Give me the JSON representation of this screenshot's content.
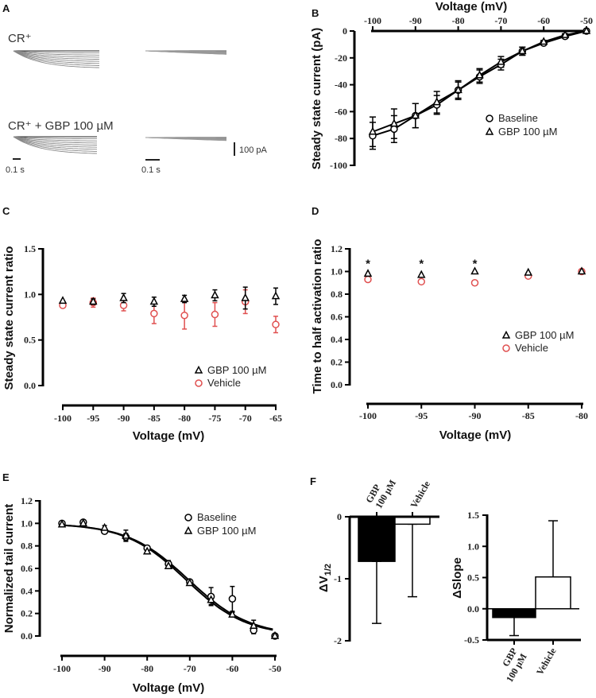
{
  "figure": {
    "panels": [
      "A",
      "B",
      "C",
      "D",
      "E",
      "F"
    ],
    "colors": {
      "black": "#000000",
      "vehicle_red": "#e05050",
      "trace_gray": "#777777"
    }
  },
  "panel_a": {
    "letter": "A",
    "label_top": "CR⁺",
    "label_bottom": "CR⁺ + GBP 100 µM",
    "scale_time_left": "0.1 s",
    "scale_time_right": "0.1 s",
    "scale_current": "100 pA"
  },
  "chart_data": [
    {
      "id": "B",
      "letter": "B",
      "type": "line",
      "title": "",
      "xlabel": "Voltage (mV)",
      "ylabel": "Steady state current (pA)",
      "xlim": [
        -100,
        -50
      ],
      "ylim": [
        -100,
        0
      ],
      "x_ticks": [
        -100,
        -90,
        -80,
        -70,
        -60,
        -50
      ],
      "y_ticks": [
        0,
        -20,
        -40,
        -60,
        -80,
        -100
      ],
      "x_axis_position": "top",
      "legend": "center-right",
      "x": [
        -100,
        -95,
        -90,
        -85,
        -80,
        -75,
        -70,
        -65,
        -60,
        -55,
        -50
      ],
      "series": [
        {
          "name": "Baseline",
          "marker": "circle",
          "color": "#000000",
          "values": [
            -78,
            -73,
            -63,
            -55,
            -44,
            -34,
            -25,
            -15,
            -9,
            -4,
            0
          ],
          "errors": [
            10,
            10,
            9,
            7,
            7,
            5,
            4,
            3,
            1,
            1,
            0
          ]
        },
        {
          "name": "GBP 100 µM",
          "marker": "triangle",
          "color": "#000000",
          "values": [
            -75,
            -69,
            -63,
            -53,
            -44,
            -33,
            -23,
            -15,
            -8,
            -3,
            0
          ],
          "errors": [
            11,
            11,
            9,
            8,
            6,
            5,
            4,
            3,
            1,
            1,
            0
          ]
        }
      ]
    },
    {
      "id": "C",
      "letter": "C",
      "type": "scatter",
      "title": "",
      "xlabel": "Voltage (mV)",
      "ylabel": "Steady state current ratio",
      "xlim": [
        -100,
        -65
      ],
      "ylim": [
        0,
        1.5
      ],
      "x_ticks": [
        -100,
        -95,
        -90,
        -85,
        -80,
        -75,
        -70,
        -65
      ],
      "y_ticks": [
        "0.0",
        "0.5",
        "1.0",
        "1.5"
      ],
      "legend": "bottom-right",
      "x": [
        -100,
        -95,
        -90,
        -85,
        -80,
        -75,
        -70,
        -65
      ],
      "series": [
        {
          "name": "GBP 100 µM",
          "marker": "triangle",
          "color": "#000000",
          "values": [
            0.93,
            0.92,
            0.96,
            0.92,
            0.95,
            0.99,
            0.96,
            0.98
          ],
          "errors": [
            0.0,
            0.03,
            0.05,
            0.05,
            0.04,
            0.06,
            0.12,
            0.09
          ]
        },
        {
          "name": "Vehicle",
          "marker": "circle",
          "color": "#e05050",
          "values": [
            0.88,
            0.91,
            0.88,
            0.79,
            0.77,
            0.78,
            0.92,
            0.67
          ],
          "errors": [
            0.0,
            0.05,
            0.06,
            0.11,
            0.15,
            0.13,
            0.13,
            0.09
          ]
        }
      ]
    },
    {
      "id": "D",
      "letter": "D",
      "type": "scatter",
      "title": "",
      "xlabel": "Voltage (mV)",
      "ylabel": "Time to half activation ratio",
      "xlim": [
        -100,
        -80
      ],
      "ylim": [
        0,
        1.2
      ],
      "x_ticks": [
        -100,
        -95,
        -90,
        -85,
        -80
      ],
      "y_ticks": [
        "0.0",
        "0.2",
        "0.4",
        "0.6",
        "0.8",
        "1.0",
        "1.2"
      ],
      "legend": "center-right",
      "x": [
        -100,
        -95,
        -90,
        -85,
        -80
      ],
      "annotations": [
        {
          "x": -100,
          "text": "*"
        },
        {
          "x": -95,
          "text": "*"
        },
        {
          "x": -90,
          "text": "*"
        }
      ],
      "series": [
        {
          "name": "GBP 100 µM",
          "marker": "triangle",
          "color": "#000000",
          "values": [
            0.98,
            0.97,
            1.0,
            0.99,
            1.0
          ]
        },
        {
          "name": "Vehicle",
          "marker": "circle",
          "color": "#e05050",
          "values": [
            0.93,
            0.91,
            0.9,
            0.96,
            1.0
          ]
        }
      ]
    },
    {
      "id": "E",
      "letter": "E",
      "type": "line",
      "title": "",
      "xlabel": "Voltage (mV)",
      "ylabel": "Normalized tail current",
      "xlim": [
        -100,
        -50
      ],
      "ylim": [
        0,
        1.2
      ],
      "x_ticks": [
        -100,
        -90,
        -80,
        -70,
        -60,
        -50
      ],
      "y_ticks": [
        "0.0",
        "0.2",
        "0.4",
        "0.6",
        "0.8",
        "1.0",
        "1.2"
      ],
      "legend": "top-right",
      "x": [
        -100,
        -95,
        -90,
        -85,
        -80,
        -75,
        -70,
        -65,
        -60,
        -55,
        -50
      ],
      "fits": [
        {
          "name": "Baseline fit",
          "type": "boltzmann",
          "v_half": -70.3,
          "slope": 7.2
        },
        {
          "name": "GBP 100 µM fit",
          "type": "boltzmann",
          "v_half": -70.9,
          "slope": 7.1
        }
      ],
      "series": [
        {
          "name": "Baseline",
          "marker": "circle",
          "color": "#000000",
          "values": [
            1.0,
            1.01,
            0.93,
            0.88,
            0.78,
            0.64,
            0.48,
            0.35,
            0.33,
            0.05,
            0.0
          ],
          "errors": [
            0.01,
            0.01,
            0.02,
            0.03,
            0.02,
            0.03,
            0.02,
            0.08,
            0.11,
            0.03,
            0.0
          ]
        },
        {
          "name": "GBP 100 µM",
          "marker": "triangle",
          "color": "#000000",
          "values": [
            0.99,
            1.0,
            0.96,
            0.89,
            0.75,
            0.62,
            0.47,
            0.32,
            0.19,
            0.09,
            0.0
          ],
          "errors": [
            0.01,
            0.01,
            0.02,
            0.05,
            0.02,
            0.02,
            0.02,
            0.04,
            0.02,
            0.05,
            0.0
          ]
        }
      ]
    },
    {
      "id": "F-left",
      "letter": "F",
      "type": "bar",
      "title": "",
      "xlabel": "",
      "ylabel": "ΔV1/2",
      "ylabel_main": "ΔV",
      "ylabel_sub": "1/2",
      "ylim": [
        -2,
        0
      ],
      "y_ticks": [
        "0",
        "-1",
        "-2"
      ],
      "categories": [
        "GBP 100 µM",
        "Vehicle"
      ],
      "category_lines": [
        [
          "GBP",
          "100 µM"
        ],
        [
          "Vehicle"
        ]
      ],
      "category_axis_position": "top",
      "values": [
        -0.72,
        -0.12
      ],
      "errors": [
        1.0,
        1.17
      ],
      "fills": [
        "#000000",
        "#ffffff"
      ]
    },
    {
      "id": "F-right",
      "letter": "",
      "type": "bar",
      "title": "",
      "xlabel": "",
      "ylabel": "ΔSlope",
      "ylim": [
        -0.5,
        1.5
      ],
      "y_ticks": [
        "1.5",
        "1.0",
        "0.5",
        "0.0",
        "-0.5"
      ],
      "categories": [
        "GBP 100 µM",
        "Vehicle"
      ],
      "category_lines": [
        [
          "GBP",
          "100 µM"
        ],
        [
          "Vehicle"
        ]
      ],
      "category_axis_position": "bottom",
      "values": [
        -0.14,
        0.51
      ],
      "errors": [
        0.29,
        0.9
      ],
      "fills": [
        "#000000",
        "#ffffff"
      ]
    }
  ]
}
